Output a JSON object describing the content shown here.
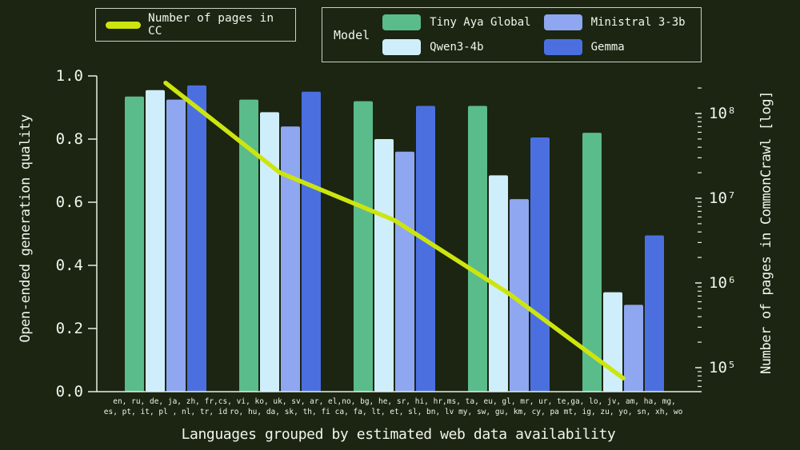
{
  "colors": {
    "background": "#1b2512",
    "text": "#f2f5ec",
    "axis": "#e9eee2",
    "cc_line": "#cde50f"
  },
  "legend_line": {
    "label": "Number of pages in CC"
  },
  "legend_model": {
    "title": "Model"
  },
  "chart_data": {
    "type": "bar",
    "title": "",
    "xlabel": "Languages grouped by estimated web data availability",
    "ylabel_left": "Open-ended generation quality",
    "ylabel_right": "Number of pages in CommonCrawl [log]",
    "ylim_left": [
      0.0,
      1.0
    ],
    "yticks_left": [
      {
        "value": 1.0,
        "label": "1.0"
      },
      {
        "value": 0.8,
        "label": "0.8"
      },
      {
        "value": 0.6,
        "label": "0.6"
      },
      {
        "value": 0.4,
        "label": "0.4"
      },
      {
        "value": 0.2,
        "label": "0.2"
      },
      {
        "value": 0.0,
        "label": "0.0"
      }
    ],
    "right_axis_log": true,
    "ylim_right": [
      63000,
      280000000
    ],
    "yticks_right": [
      {
        "value": 100000000,
        "label": "10⁸"
      },
      {
        "value": 10000000,
        "label": "10⁷"
      },
      {
        "value": 1000000,
        "label": "10⁶"
      },
      {
        "value": 100000,
        "label": "10⁵"
      }
    ],
    "grid": false,
    "legend_position": "top",
    "categories": [
      [
        "en, ru, de, ja, zh, fr,",
        "es, pt, it, pl , nl, tr, id"
      ],
      [
        "cs, vi, ko, uk, sv, ar, el,",
        "ro, hu, da, sk, th, fi"
      ],
      [
        "no, bg, he, sr, hi, hr,",
        "ca, fa, lt, et, sl, bn, lv"
      ],
      [
        "ms, ta, eu, gl, mr, ur, te,",
        "my, sw, gu, km, cy, pa"
      ],
      [
        "ga, lo, jv, am, ha, mg,",
        "mt, ig, zu, yo, sn, xh, wo"
      ]
    ],
    "series": [
      {
        "name": "Tiny Aya Global",
        "color": "#5abc8a",
        "values": [
          0.935,
          0.925,
          0.92,
          0.905,
          0.82
        ]
      },
      {
        "name": "Qwen3-4b",
        "color": "#cfeefb",
        "values": [
          0.955,
          0.885,
          0.8,
          0.685,
          0.315
        ]
      },
      {
        "name": "Ministral 3-3b",
        "color": "#8fa6f0",
        "values": [
          0.925,
          0.84,
          0.76,
          0.61,
          0.275
        ]
      },
      {
        "name": "Gemma",
        "color": "#4c6fe0",
        "values": [
          0.97,
          0.95,
          0.905,
          0.805,
          0.495
        ]
      }
    ],
    "line_series": {
      "name": "Number of pages in CC",
      "color": "#cde50f",
      "values": [
        230000000,
        20000000,
        5500000,
        750000,
        75000
      ]
    }
  }
}
